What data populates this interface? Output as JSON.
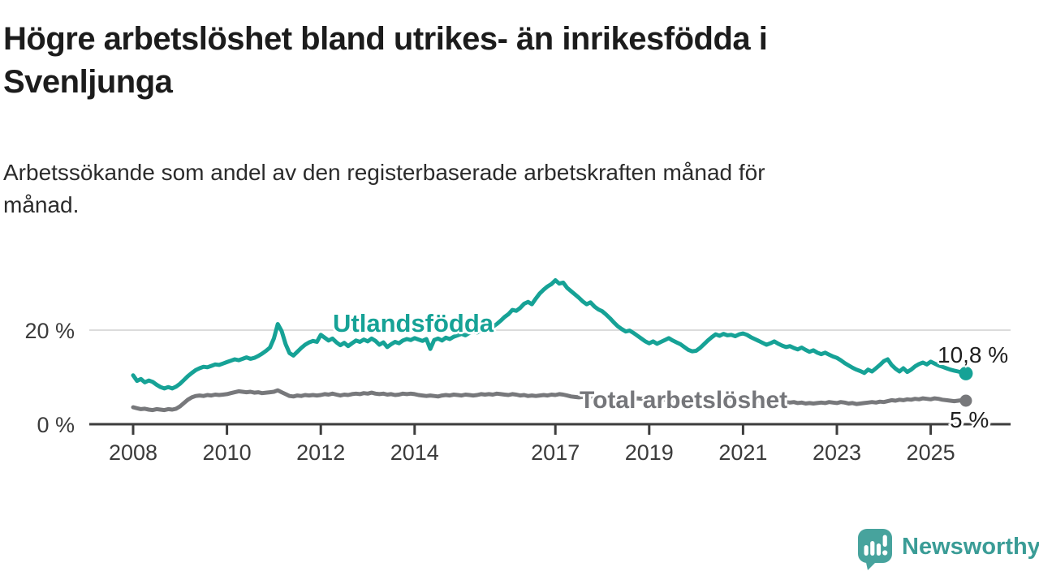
{
  "header": {
    "title_lines": [
      "Högre arbetslöshet bland utrikes- än inrikesfödda i",
      "Svenljunga"
    ],
    "subtitle_lines": [
      "Arbetssökande som andel av den registerbaserade arbetskraften månad för",
      "månad."
    ]
  },
  "colors": {
    "series_foreign": "#16a296",
    "series_total": "#77787b",
    "axis": "#3d3d3d",
    "gridline": "#dcdcdc",
    "tick_text": "#3b3b3b",
    "title_text": "#1c1c1c",
    "end_label_text": "#1e1e1e",
    "brand": "#3a9c96"
  },
  "branding": {
    "logo_text": "Newsworthy",
    "icon": "newsworthy-speech-bubble-bar-chart-icon"
  },
  "chart_data": {
    "type": "line",
    "title": "Högre arbetslöshet bland utrikes- än inrikesfödda i Svenljunga",
    "subtitle": "Arbetssökande som andel av den registerbaserade arbetskraften månad för månad.",
    "xlabel": "",
    "ylabel": "",
    "grid": "single horizontal gridline at 20 %",
    "x_start_year": 2008,
    "points_per_year": 12,
    "x_range": [
      2008.0,
      2025.75
    ],
    "ylim": [
      0,
      31
    ],
    "x_axis_ticks": [
      2008,
      2010,
      2012,
      2014,
      2017,
      2019,
      2021,
      2023,
      2025
    ],
    "y_axis_ticks": [
      {
        "value": 0,
        "label": "0 %"
      },
      {
        "value": 20,
        "label": "20 %"
      }
    ],
    "series": [
      {
        "name": "Utlandsfödda",
        "color": "#16a296",
        "end_label": "10,8 %",
        "end_value": 10.8,
        "values": [
          10.4,
          9.2,
          9.6,
          8.9,
          9.3,
          9.0,
          8.4,
          7.9,
          7.6,
          7.9,
          7.6,
          8.0,
          8.6,
          9.4,
          10.2,
          10.9,
          11.5,
          11.9,
          12.2,
          12.1,
          12.4,
          12.7,
          12.6,
          12.9,
          13.2,
          13.5,
          13.8,
          13.6,
          13.9,
          14.2,
          13.9,
          14.1,
          14.5,
          15.0,
          15.6,
          16.3,
          18.2,
          21.3,
          19.8,
          17.0,
          15.1,
          14.6,
          15.4,
          16.2,
          16.9,
          17.4,
          17.7,
          17.5,
          19.0,
          18.4,
          17.8,
          18.2,
          17.4,
          16.8,
          17.3,
          16.6,
          17.2,
          17.8,
          17.5,
          18.0,
          17.6,
          18.2,
          17.7,
          16.9,
          17.4,
          16.4,
          17.0,
          17.5,
          17.2,
          17.8,
          18.1,
          17.9,
          18.3,
          18.0,
          17.7,
          18.1,
          16.0,
          17.9,
          18.2,
          17.8,
          18.4,
          18.1,
          18.6,
          18.9,
          19.2,
          18.9,
          19.4,
          19.8,
          19.5,
          20.0,
          20.4,
          20.1,
          20.7,
          21.3,
          22.0,
          22.8,
          23.4,
          24.3,
          24.1,
          24.7,
          25.6,
          26.0,
          25.5,
          26.7,
          27.8,
          28.6,
          29.3,
          29.8,
          30.6,
          29.9,
          30.1,
          29.0,
          28.3,
          27.6,
          26.9,
          26.1,
          25.5,
          25.9,
          25.0,
          24.4,
          24.0,
          23.3,
          22.5,
          21.6,
          20.8,
          20.2,
          19.7,
          19.9,
          19.4,
          18.8,
          18.2,
          17.6,
          17.2,
          17.6,
          17.1,
          17.5,
          17.9,
          18.3,
          17.8,
          17.4,
          17.0,
          16.4,
          15.8,
          15.5,
          15.6,
          16.2,
          17.0,
          17.8,
          18.5,
          19.1,
          18.8,
          19.2,
          18.9,
          19.0,
          18.7,
          19.1,
          19.3,
          19.0,
          18.5,
          18.1,
          17.7,
          17.3,
          16.9,
          17.2,
          17.6,
          17.1,
          16.7,
          16.4,
          16.6,
          16.2,
          15.9,
          16.3,
          15.8,
          15.4,
          15.7,
          15.2,
          14.9,
          15.2,
          14.8,
          14.4,
          14.1,
          13.6,
          13.0,
          12.5,
          12.0,
          11.6,
          11.3,
          10.9,
          11.6,
          11.2,
          11.9,
          12.6,
          13.4,
          13.8,
          12.6,
          11.8,
          11.2,
          11.9,
          11.1,
          11.6,
          12.3,
          12.8,
          13.1,
          12.7,
          13.3,
          12.9,
          12.5,
          12.2,
          11.9,
          11.6,
          11.4,
          11.2,
          11.0,
          10.8
        ]
      },
      {
        "name": "Total arbetslöshet",
        "color": "#77787b",
        "end_label": "5 %",
        "end_value": 5,
        "values": [
          3.6,
          3.4,
          3.2,
          3.3,
          3.1,
          3.0,
          3.2,
          3.1,
          3.0,
          3.2,
          3.1,
          3.3,
          3.8,
          4.5,
          5.2,
          5.7,
          6.0,
          6.1,
          6.0,
          6.2,
          6.1,
          6.3,
          6.2,
          6.3,
          6.4,
          6.6,
          6.8,
          7.0,
          6.9,
          6.8,
          6.9,
          6.7,
          6.8,
          6.6,
          6.7,
          6.8,
          6.9,
          7.2,
          6.8,
          6.4,
          6.0,
          5.9,
          6.1,
          6.0,
          6.2,
          6.1,
          6.2,
          6.1,
          6.2,
          6.4,
          6.3,
          6.5,
          6.3,
          6.1,
          6.3,
          6.2,
          6.4,
          6.5,
          6.4,
          6.6,
          6.5,
          6.7,
          6.5,
          6.4,
          6.5,
          6.3,
          6.4,
          6.2,
          6.3,
          6.5,
          6.4,
          6.5,
          6.4,
          6.2,
          6.1,
          6.0,
          6.1,
          6.0,
          5.9,
          6.1,
          6.2,
          6.1,
          6.3,
          6.2,
          6.1,
          6.3,
          6.2,
          6.1,
          6.2,
          6.4,
          6.3,
          6.4,
          6.3,
          6.5,
          6.4,
          6.3,
          6.2,
          6.4,
          6.3,
          6.1,
          6.2,
          6.0,
          6.1,
          6.0,
          6.1,
          6.2,
          6.1,
          6.3,
          6.2,
          6.4,
          6.3,
          6.1,
          5.9,
          5.8,
          5.7,
          5.8,
          5.7,
          5.9,
          5.8,
          6.0,
          5.9,
          5.7,
          5.6,
          5.4,
          5.5,
          5.3,
          5.4,
          5.2,
          5.3,
          5.5,
          5.4,
          5.6,
          5.5,
          5.3,
          5.4,
          5.2,
          5.3,
          5.1,
          5.2,
          5.0,
          5.1,
          5.3,
          5.2,
          5.4,
          5.3,
          5.5,
          5.7,
          5.9,
          5.8,
          5.7,
          5.6,
          5.5,
          5.4,
          5.3,
          5.2,
          5.1,
          5.2,
          5.3,
          5.1,
          5.0,
          4.9,
          4.8,
          4.9,
          4.7,
          4.8,
          4.7,
          4.6,
          4.7,
          4.6,
          4.7,
          4.5,
          4.6,
          4.4,
          4.5,
          4.4,
          4.5,
          4.6,
          4.5,
          4.7,
          4.6,
          4.5,
          4.7,
          4.6,
          4.4,
          4.5,
          4.3,
          4.4,
          4.5,
          4.6,
          4.7,
          4.6,
          4.8,
          4.7,
          4.9,
          5.1,
          5.0,
          5.2,
          5.1,
          5.3,
          5.2,
          5.4,
          5.3,
          5.5,
          5.4,
          5.3,
          5.5,
          5.4,
          5.2,
          5.1,
          5.0,
          4.9,
          5.0,
          5.1,
          5.0
        ]
      }
    ]
  }
}
